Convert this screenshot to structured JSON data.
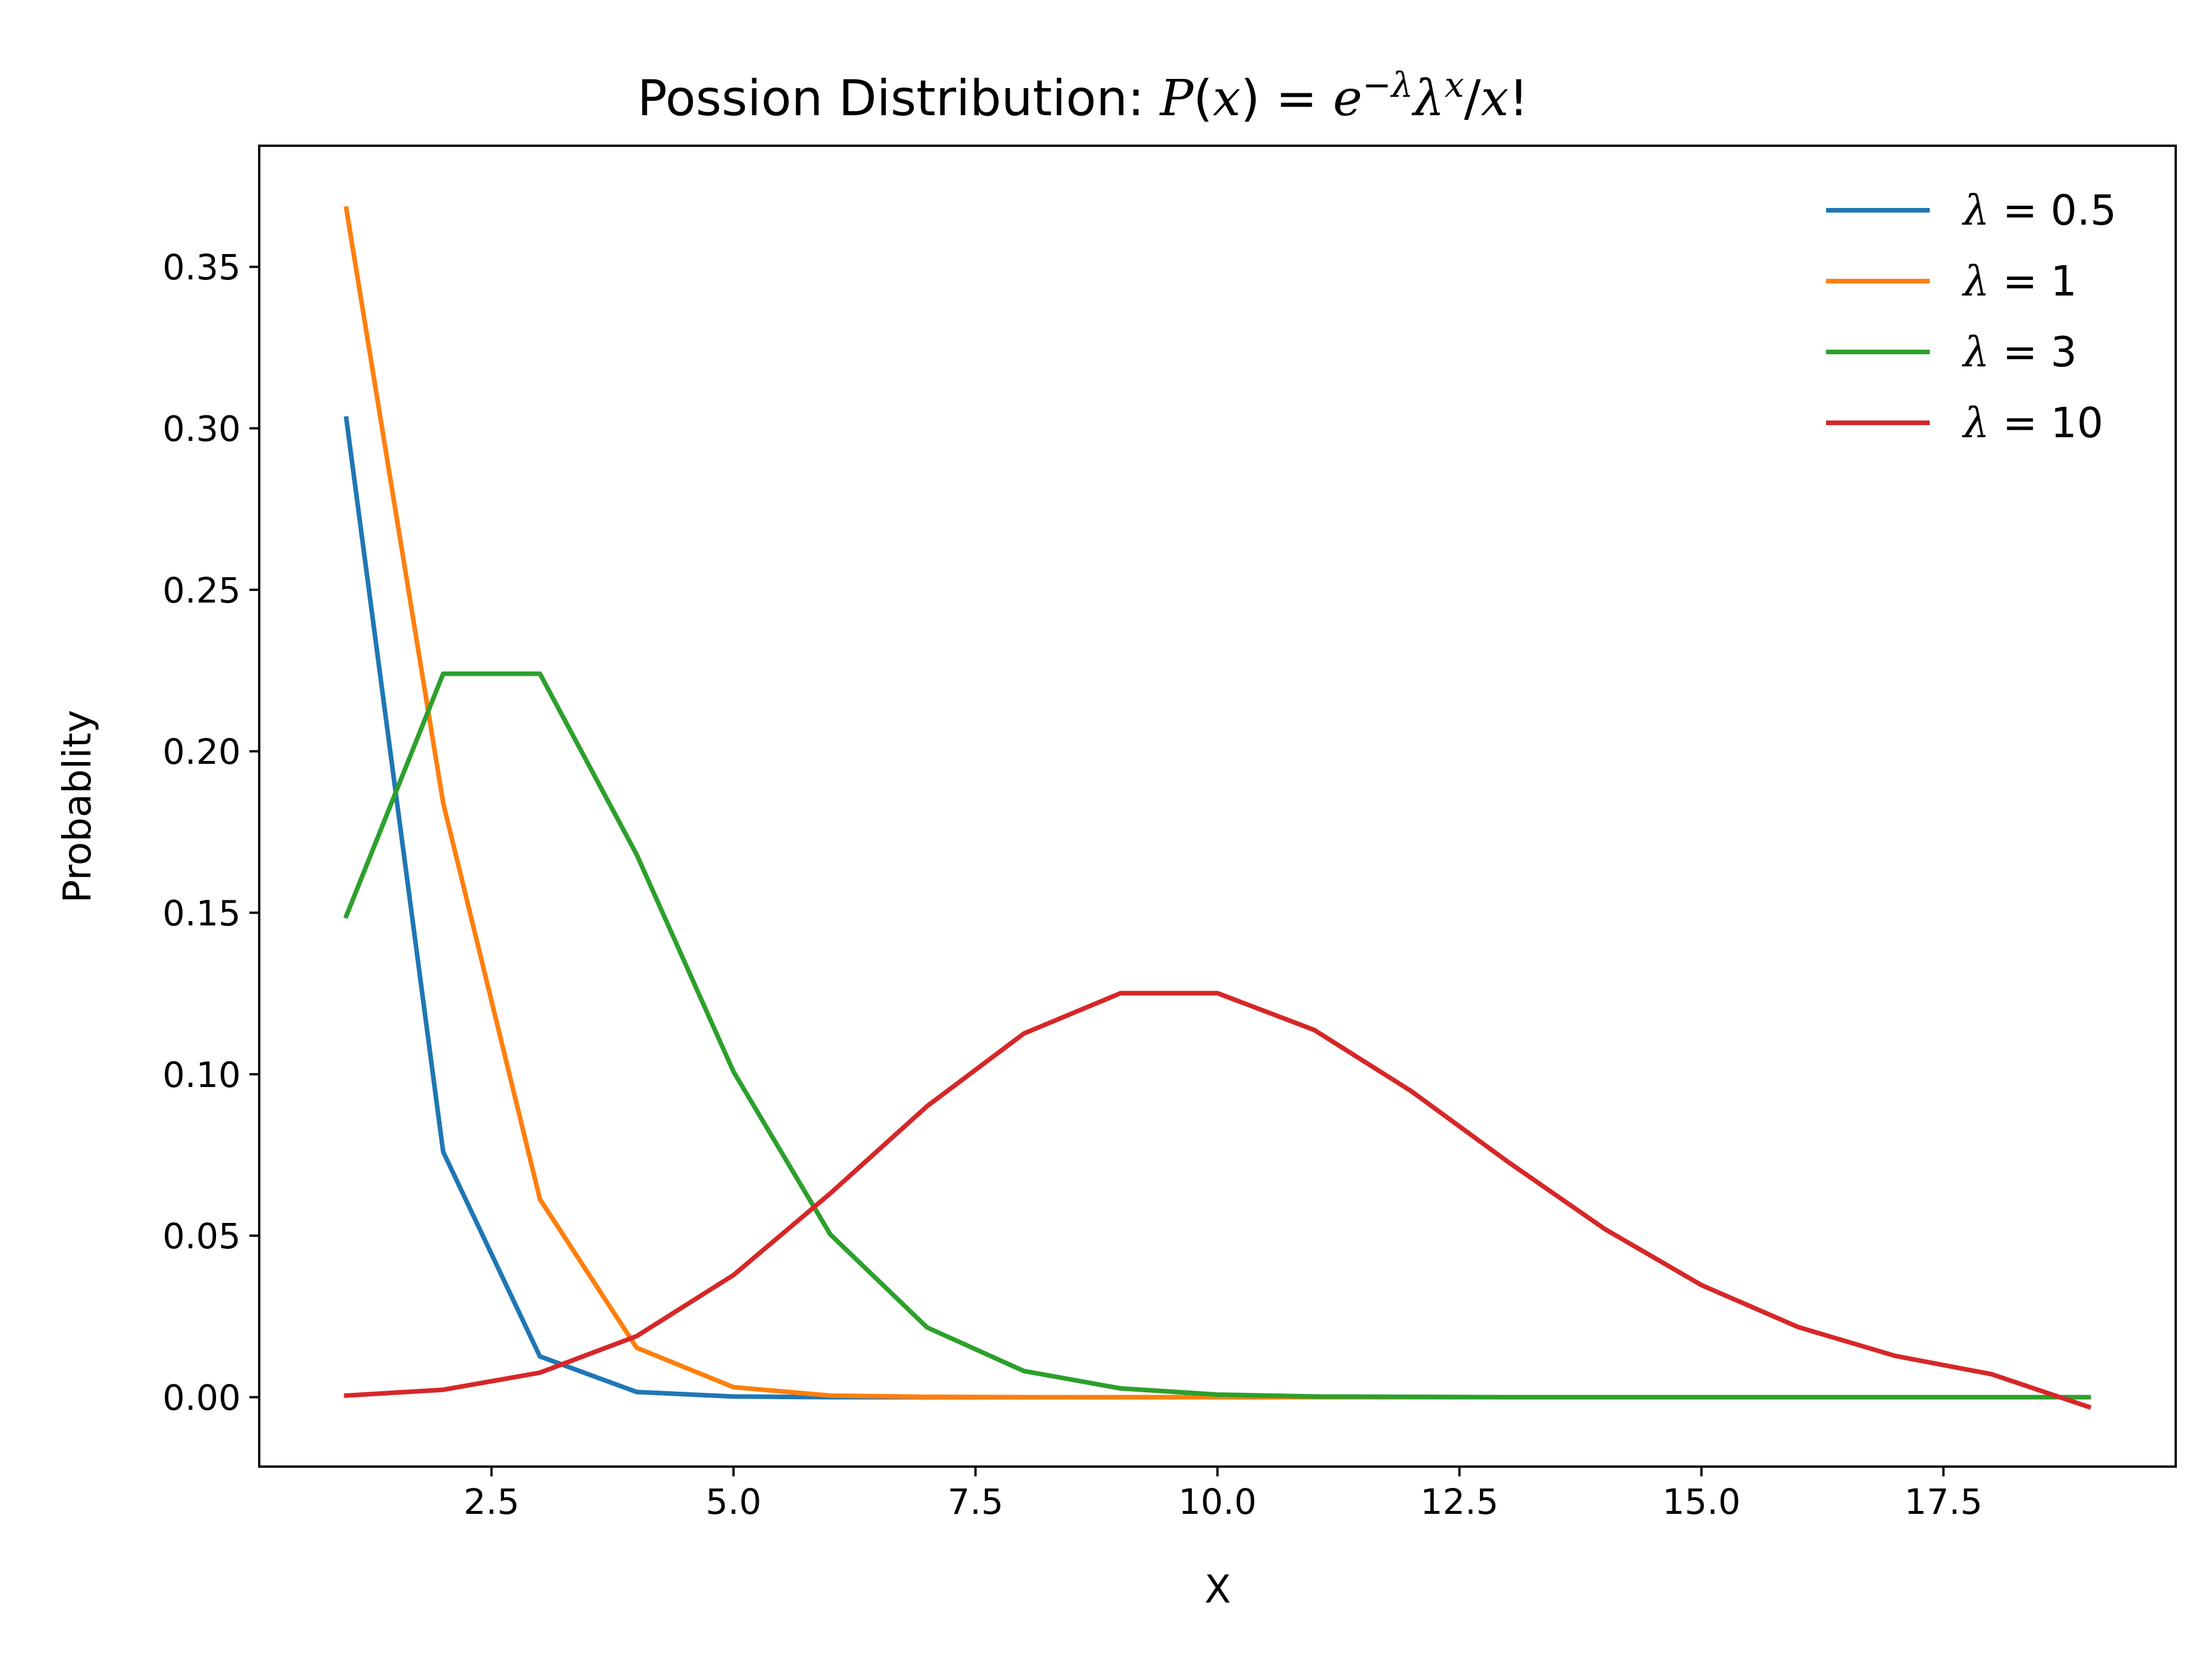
{
  "chart_data": {
    "type": "line",
    "title": {
      "prefix": "Possion Distribution: ",
      "P": "P",
      "x": "x",
      "e": "e",
      "neg": "−",
      "lambda": "λ",
      "eq": " = ",
      "open_paren": "(",
      "close_paren": ")",
      "slash": "/",
      "bang": "!"
    },
    "xlabel": "X",
    "ylabel": "Probablity",
    "xlim": [
      0.1,
      19.9
    ],
    "ylim": [
      -0.0215,
      0.3875
    ],
    "xticks": [
      2.5,
      5.0,
      7.5,
      10.0,
      12.5,
      15.0,
      17.5
    ],
    "xtick_labels": [
      "2.5",
      "5.0",
      "7.5",
      "10.0",
      "12.5",
      "15.0",
      "17.5"
    ],
    "yticks": [
      0.0,
      0.05,
      0.1,
      0.15,
      0.2,
      0.25,
      0.3,
      0.35
    ],
    "ytick_labels": [
      "0.00",
      "0.05",
      "0.10",
      "0.15",
      "0.20",
      "0.25",
      "0.30",
      "0.35"
    ],
    "grid": false,
    "legend_position": "top-right",
    "x": [
      1,
      2,
      3,
      4,
      5,
      6,
      7,
      8,
      9,
      10,
      11,
      12,
      13,
      14,
      15,
      16,
      17,
      18,
      19
    ],
    "series": [
      {
        "name": "λ = 0.5",
        "lambda": "0.5",
        "color": "#1f77b4",
        "values": [
          0.303,
          0.076,
          0.0126,
          0.0016,
          0.0002,
          0.0,
          0.0,
          0.0,
          0.0,
          0.0,
          0.0,
          0.0,
          0.0,
          0.0,
          0.0,
          0.0,
          0.0,
          0.0,
          0.0
        ]
      },
      {
        "name": "λ = 1",
        "lambda": "1",
        "color": "#ff7f0e",
        "values": [
          0.368,
          0.184,
          0.0613,
          0.0153,
          0.0031,
          0.0005,
          0.0001,
          0.0,
          0.0,
          0.0,
          0.0,
          0.0,
          0.0,
          0.0,
          0.0,
          0.0,
          0.0,
          0.0,
          0.0
        ]
      },
      {
        "name": "λ = 3",
        "lambda": "3",
        "color": "#2ca02c",
        "values": [
          0.149,
          0.224,
          0.224,
          0.168,
          0.1008,
          0.0504,
          0.0216,
          0.0081,
          0.0027,
          0.0008,
          0.0002,
          0.0001,
          0.0,
          0.0,
          0.0,
          0.0,
          0.0,
          0.0,
          0.0
        ]
      },
      {
        "name": "λ = 10",
        "lambda": "10",
        "color": "#d62728",
        "values": [
          0.0005,
          0.0023,
          0.0076,
          0.0189,
          0.0378,
          0.0631,
          0.0901,
          0.1126,
          0.1251,
          0.1251,
          0.1137,
          0.0948,
          0.0729,
          0.0521,
          0.0347,
          0.0217,
          0.0128,
          0.0071,
          -0.003
        ]
      }
    ]
  }
}
